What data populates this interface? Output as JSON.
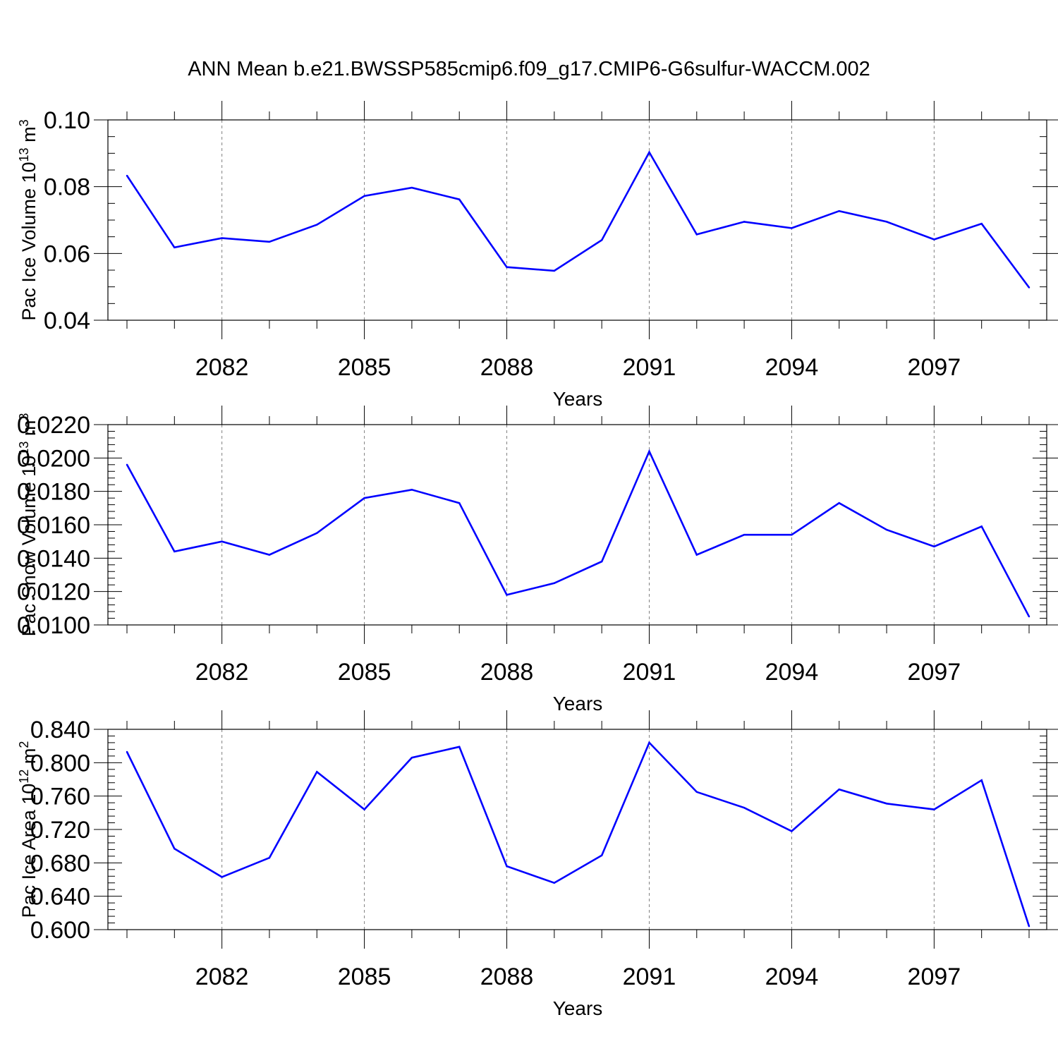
{
  "title": "ANN Mean b.e21.BWSSP585cmip6.f09_g17.CMIP6-G6sulfur-WACCM.002",
  "colors": {
    "line": "#0000ff",
    "axis": "#000000",
    "grid": "#808080"
  },
  "chart_data": [
    {
      "type": "line",
      "ylabel": "Pac Ice Volume",
      "ylabel_unit": "10^13 m^3",
      "ylabel_unit_base": "10",
      "ylabel_unit_exp": "13",
      "ylabel_unit_m": "m",
      "ylabel_unit_m_exp": "3",
      "xlabel": "Years",
      "xlim": [
        2080,
        2099
      ],
      "ylim": [
        0.04,
        0.1
      ],
      "yticks": [
        0.04,
        0.06,
        0.08,
        0.1
      ],
      "ytick_labels": [
        "0.04",
        "0.06",
        "0.08",
        "0.10"
      ],
      "xticks": [
        2082,
        2085,
        2088,
        2091,
        2094,
        2097
      ],
      "xtick_labels": [
        "2082",
        "2085",
        "2088",
        "2091",
        "2094",
        "2097"
      ],
      "grid": "vertical dashed at major x ticks",
      "series": [
        {
          "x": [
            2080,
            2081,
            2082,
            2083,
            2084,
            2085,
            2086,
            2087,
            2088,
            2089,
            2090,
            2091,
            2092,
            2093,
            2094,
            2095,
            2096,
            2097,
            2098,
            2099
          ],
          "values": [
            0.0833,
            0.0618,
            0.0646,
            0.0635,
            0.0686,
            0.0772,
            0.0797,
            0.0762,
            0.0559,
            0.0548,
            0.064,
            0.0903,
            0.0657,
            0.0695,
            0.0676,
            0.0727,
            0.0695,
            0.0642,
            0.0689,
            0.0498
          ]
        }
      ]
    },
    {
      "type": "line",
      "ylabel": "Pac Snow Volume",
      "ylabel_unit": "10^13 m^3",
      "ylabel_unit_base": "10",
      "ylabel_unit_exp": "13",
      "ylabel_unit_m": "m",
      "ylabel_unit_m_exp": "3",
      "xlabel": "Years",
      "xlim": [
        2080,
        2099
      ],
      "ylim": [
        0.01,
        0.022
      ],
      "yticks": [
        0.01,
        0.012,
        0.014,
        0.016,
        0.018,
        0.02,
        0.022
      ],
      "ytick_labels": [
        "0.0100",
        "0.0120",
        "0.0140",
        "0.0160",
        "0.0180",
        "0.0200",
        "0.0220"
      ],
      "xticks": [
        2082,
        2085,
        2088,
        2091,
        2094,
        2097
      ],
      "xtick_labels": [
        "2082",
        "2085",
        "2088",
        "2091",
        "2094",
        "2097"
      ],
      "grid": "vertical dashed at major x ticks",
      "series": [
        {
          "x": [
            2080,
            2081,
            2082,
            2083,
            2084,
            2085,
            2086,
            2087,
            2088,
            2089,
            2090,
            2091,
            2092,
            2093,
            2094,
            2095,
            2096,
            2097,
            2098,
            2099
          ],
          "values": [
            0.0196,
            0.0144,
            0.015,
            0.0142,
            0.0155,
            0.0176,
            0.0181,
            0.0173,
            0.0118,
            0.0125,
            0.0138,
            0.0204,
            0.0142,
            0.0154,
            0.0154,
            0.0173,
            0.0157,
            0.0147,
            0.0159,
            0.0105
          ]
        }
      ]
    },
    {
      "type": "line",
      "ylabel": "Pac Ice Area",
      "ylabel_unit": "10^12 m^2",
      "ylabel_unit_base": "10",
      "ylabel_unit_exp": "12",
      "ylabel_unit_m": "m",
      "ylabel_unit_m_exp": "2",
      "xlabel": "Years",
      "xlim": [
        2080,
        2099
      ],
      "ylim": [
        0.6,
        0.84
      ],
      "yticks": [
        0.6,
        0.64,
        0.68,
        0.72,
        0.76,
        0.8,
        0.84
      ],
      "ytick_labels": [
        "0.600",
        "0.640",
        "0.680",
        "0.720",
        "0.760",
        "0.800",
        "0.840"
      ],
      "xticks": [
        2082,
        2085,
        2088,
        2091,
        2094,
        2097
      ],
      "xtick_labels": [
        "2082",
        "2085",
        "2088",
        "2091",
        "2094",
        "2097"
      ],
      "grid": "vertical dashed at major x ticks",
      "series": [
        {
          "x": [
            2080,
            2081,
            2082,
            2083,
            2084,
            2085,
            2086,
            2087,
            2088,
            2089,
            2090,
            2091,
            2092,
            2093,
            2094,
            2095,
            2096,
            2097,
            2098,
            2099
          ],
          "values": [
            0.813,
            0.697,
            0.663,
            0.686,
            0.789,
            0.744,
            0.806,
            0.819,
            0.676,
            0.656,
            0.689,
            0.824,
            0.765,
            0.746,
            0.718,
            0.768,
            0.751,
            0.744,
            0.779,
            0.604
          ]
        }
      ]
    }
  ]
}
